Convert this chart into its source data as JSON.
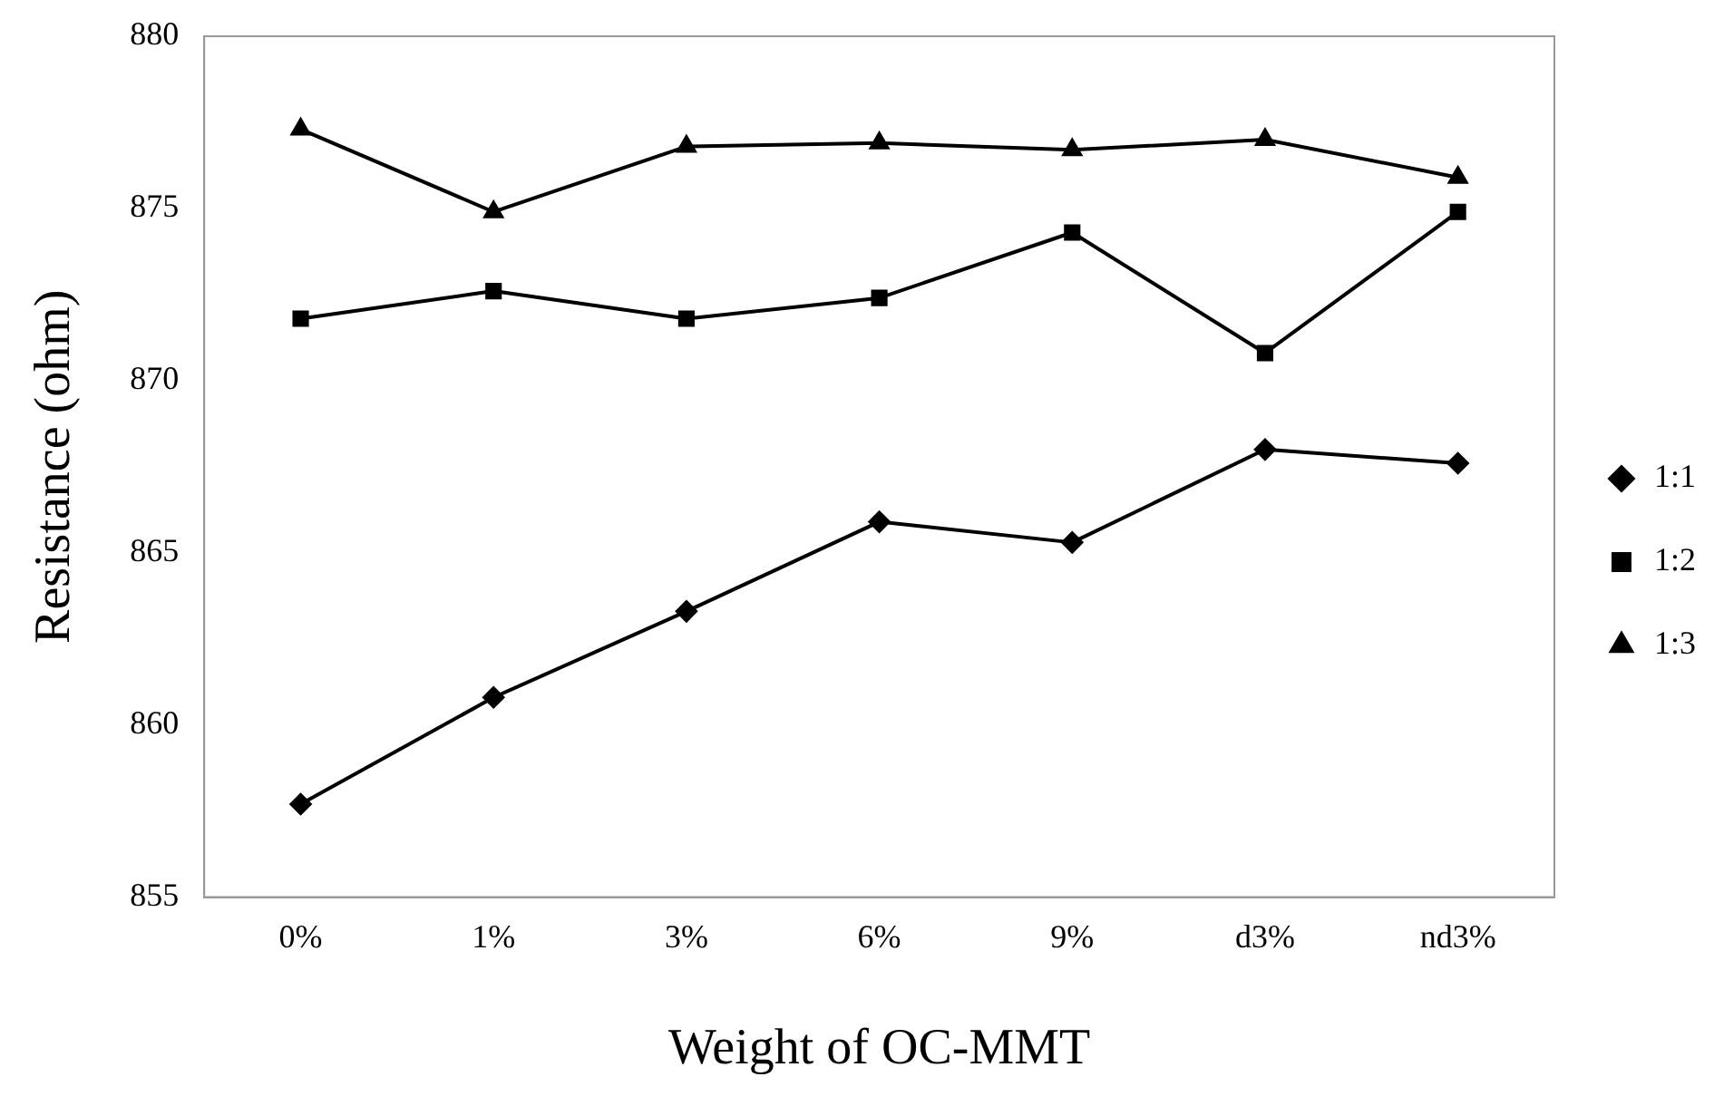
{
  "chart_data": {
    "type": "line",
    "xlabel": "Weight of OC-MMT",
    "ylabel": "Resistance (ohm)",
    "categories": [
      "0%",
      "1%",
      "3%",
      "6%",
      "9%",
      "d3%",
      "nd3%"
    ],
    "series": [
      {
        "name": "1:1",
        "color": "#000000",
        "marker": "diamond",
        "values": [
          857.7,
          860.8,
          863.3,
          865.9,
          865.3,
          868.0,
          867.6
        ]
      },
      {
        "name": "1:2",
        "color": "#000000",
        "marker": "square",
        "values": [
          871.8,
          872.6,
          871.8,
          872.4,
          874.3,
          870.8,
          874.9
        ]
      },
      {
        "name": "1:3",
        "color": "#000000",
        "marker": "triangle",
        "values": [
          877.3,
          874.9,
          876.8,
          876.9,
          876.7,
          877.0,
          875.9
        ]
      }
    ],
    "ylim": [
      855,
      880
    ],
    "yticks": [
      855,
      860,
      865,
      870,
      875,
      880
    ],
    "grid": false,
    "legend": "right",
    "line_style": "solid"
  }
}
